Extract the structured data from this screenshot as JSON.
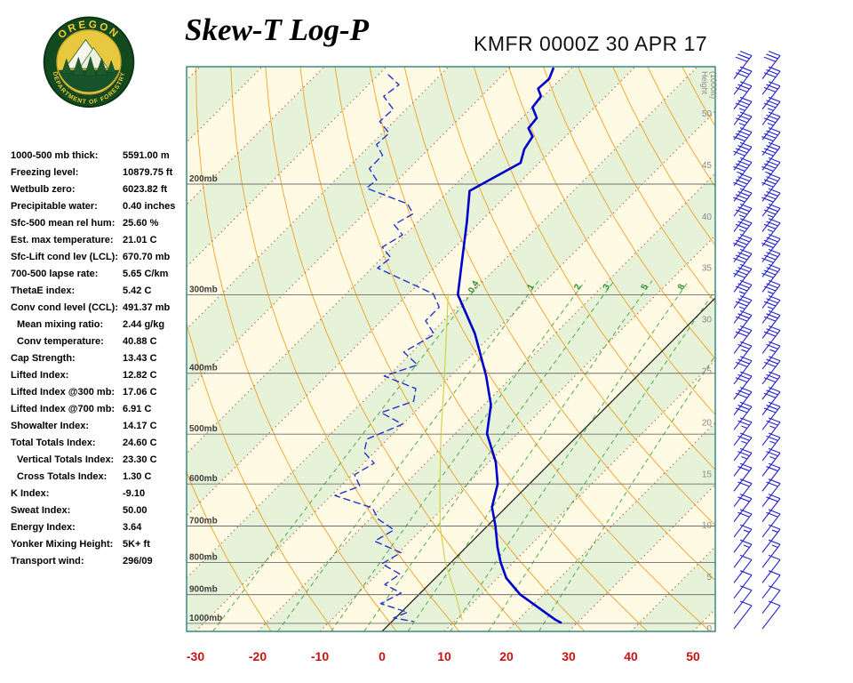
{
  "header": {
    "title": "Skew-T Log-P",
    "station_line": "KMFR 0000Z 30 APR 17",
    "logo": {
      "top": "OREGON",
      "bottom": "DEPARTMENT OF FORESTRY"
    }
  },
  "indices": {
    "rows": [
      {
        "label": "1000-500 mb thick:",
        "value": "5591.00 m",
        "indent": false
      },
      {
        "label": "Freezing level:",
        "value": "10879.75 ft",
        "indent": false
      },
      {
        "label": "Wetbulb zero:",
        "value": "6023.82 ft",
        "indent": false
      },
      {
        "label": "Precipitable water:",
        "value": "0.40 inches",
        "indent": false
      },
      {
        "label": "Sfc-500 mean rel hum:",
        "value": "25.60 %",
        "indent": false
      },
      {
        "label": "Est. max temperature:",
        "value": "21.01 C",
        "indent": false
      },
      {
        "label": "Sfc-Lift cond lev (LCL):",
        "value": "670.70 mb",
        "indent": false
      },
      {
        "label": "700-500 lapse rate:",
        "value": "5.65 C/km",
        "indent": false
      },
      {
        "label": "ThetaE index:",
        "value": "5.42 C",
        "indent": false
      },
      {
        "label": "Conv cond level (CCL):",
        "value": "491.37 mb",
        "indent": false
      },
      {
        "label": "Mean mixing ratio:",
        "value": "2.44 g/kg",
        "indent": true
      },
      {
        "label": "Conv temperature:",
        "value": "40.88 C",
        "indent": true
      },
      {
        "label": "Cap Strength:",
        "value": "13.43 C",
        "indent": false
      },
      {
        "label": "Lifted Index:",
        "value": "12.82 C",
        "indent": false
      },
      {
        "label": "Lifted Index @300 mb:",
        "value": "17.06 C",
        "indent": false
      },
      {
        "label": "Lifted Index @700 mb:",
        "value": "6.91 C",
        "indent": false
      },
      {
        "label": "Showalter Index:",
        "value": "14.17 C",
        "indent": false
      },
      {
        "label": "Total Totals Index:",
        "value": "24.60 C",
        "indent": false
      },
      {
        "label": "Vertical Totals Index:",
        "value": "23.30 C",
        "indent": true
      },
      {
        "label": "Cross Totals Index:",
        "value": "1.30 C",
        "indent": true
      },
      {
        "label": "K Index:",
        "value": "-9.10",
        "indent": false
      },
      {
        "label": "Sweat Index:",
        "value": "50.00",
        "indent": false
      },
      {
        "label": "Energy Index:",
        "value": "3.64",
        "indent": false
      },
      {
        "label": "Yonker Mixing Height:",
        "value": "5K+ ft",
        "indent": false
      },
      {
        "label": "Transport wind:",
        "value": "296/09",
        "indent": false
      }
    ]
  },
  "chart_data": {
    "type": "line",
    "subtype": "skew-t-log-p",
    "title": "Skew-T Log-P",
    "station": "KMFR",
    "valid_time": "0000Z 30 APR 17",
    "x_axis": {
      "ticks": [
        -30,
        -20,
        -10,
        0,
        10,
        20,
        30,
        40,
        50
      ],
      "unit": "C",
      "label_color": "#cc1111"
    },
    "pressure_ticks": [
      200,
      300,
      400,
      500,
      600,
      700,
      800,
      900,
      1000
    ],
    "pressure_suffix": "mb",
    "pressure_range": [
      130,
      1030
    ],
    "height_axis": {
      "title": "Height",
      "unit": "(1000ft)",
      "ticks": [
        50,
        45,
        40,
        35,
        30,
        25,
        20,
        15,
        10,
        5,
        0
      ]
    },
    "isotherms": {
      "min": -130,
      "max": 60,
      "step": 10,
      "freezing": 0
    },
    "dry_adiabats": {
      "min": -20,
      "max": 210,
      "step": 10
    },
    "mixing_ratio_lines": [
      0.4,
      1,
      2,
      3,
      5,
      8,
      12,
      20
    ],
    "mixing_ratio_labeled": [
      0.4,
      1,
      2,
      3,
      5,
      8
    ],
    "colors": {
      "background": "#fffae3",
      "band": "#e7f3d9",
      "isotherm": "#b45f3f",
      "adiabat": "#f09000",
      "mixing": "#3aa33a",
      "frame": "#2e8080",
      "temperature": "#0000cc",
      "dewpoint": "#2233cc",
      "wetbulb": "#cfcf40",
      "barb": "#2121cc"
    },
    "series": [
      {
        "name": "wetbulb",
        "color": "#cfcf40",
        "style": "solid",
        "width": 1.1,
        "points": [
          [
            299,
            -43.6
          ],
          [
            404,
            -31
          ],
          [
            499,
            -22.3
          ],
          [
            600,
            -14.4
          ],
          [
            700,
            -7.6
          ],
          [
            800,
            -0.9
          ],
          [
            900,
            5.9
          ],
          [
            987,
            11
          ]
        ]
      },
      {
        "name": "dewpoint",
        "color": "#2233cc",
        "style": "dashed",
        "width": 1.4,
        "points": [
          [
            134,
            -88.4
          ],
          [
            139,
            -85.1
          ],
          [
            145,
            -85.7
          ],
          [
            152,
            -82.1
          ],
          [
            159,
            -82.3
          ],
          [
            166,
            -78.9
          ],
          [
            173,
            -79.1
          ],
          [
            180,
            -76.4
          ],
          [
            189,
            -76.4
          ],
          [
            197,
            -73.4
          ],
          [
            203,
            -73.7
          ],
          [
            215,
            -64.6
          ],
          [
            223,
            -62.1
          ],
          [
            232,
            -63.4
          ],
          [
            241,
            -60.4
          ],
          [
            252,
            -61.7
          ],
          [
            262,
            -58.6
          ],
          [
            272,
            -59.1
          ],
          [
            299,
            -46
          ],
          [
            314,
            -42.9
          ],
          [
            330,
            -42.9
          ],
          [
            347,
            -39.3
          ],
          [
            370,
            -41.4
          ],
          [
            388,
            -37.1
          ],
          [
            404,
            -40.7
          ],
          [
            423,
            -33.6
          ],
          [
            443,
            -31.9
          ],
          [
            462,
            -35.3
          ],
          [
            482,
            -30
          ],
          [
            509,
            -33.3
          ],
          [
            534,
            -31.7
          ],
          [
            556,
            -28.3
          ],
          [
            580,
            -29.6
          ],
          [
            605,
            -26.9
          ],
          [
            626,
            -29.4
          ],
          [
            655,
            -21.4
          ],
          [
            683,
            -18.6
          ],
          [
            710,
            -14.4
          ],
          [
            740,
            -15.7
          ],
          [
            772,
            -9.6
          ],
          [
            804,
            -10.9
          ],
          [
            835,
            -6.3
          ],
          [
            867,
            -7.1
          ],
          [
            895,
            -3.1
          ],
          [
            930,
            -4.7
          ],
          [
            960,
            1
          ],
          [
            980,
            -0.3
          ],
          [
            993,
            3.4
          ]
        ]
      },
      {
        "name": "temperature",
        "color": "#0000cc",
        "style": "solid",
        "width": 2.6,
        "points": [
          [
            131,
            -62.9
          ],
          [
            136,
            -61.9
          ],
          [
            141,
            -62.1
          ],
          [
            145,
            -60.4
          ],
          [
            151,
            -60
          ],
          [
            157,
            -57.6
          ],
          [
            163,
            -57.3
          ],
          [
            168,
            -55.3
          ],
          [
            176,
            -54.6
          ],
          [
            185,
            -53
          ],
          [
            205,
            -56.7
          ],
          [
            230,
            -52.1
          ],
          [
            262,
            -47.1
          ],
          [
            300,
            -41.9
          ],
          [
            346,
            -32.9
          ],
          [
            404,
            -24.3
          ],
          [
            449,
            -18.9
          ],
          [
            499,
            -14.9
          ],
          [
            554,
            -8.9
          ],
          [
            600,
            -5.1
          ],
          [
            653,
            -2.3
          ],
          [
            700,
            1.3
          ],
          [
            756,
            5
          ],
          [
            800,
            8
          ],
          [
            847,
            11.4
          ],
          [
            900,
            16.3
          ],
          [
            987,
            26
          ],
          [
            997,
            27.3
          ]
        ]
      }
    ],
    "wind_barb_levels": [
      [
        1020,
        8
      ],
      [
        964,
        10
      ],
      [
        912,
        10
      ],
      [
        862,
        12
      ],
      [
        815,
        15
      ],
      [
        771,
        15
      ],
      [
        729,
        18
      ],
      [
        689,
        20
      ],
      [
        652,
        20
      ],
      [
        616,
        22
      ],
      [
        583,
        25
      ],
      [
        551,
        25
      ],
      [
        521,
        25
      ],
      [
        492,
        28
      ],
      [
        466,
        30
      ],
      [
        440,
        30
      ],
      [
        416,
        28
      ],
      [
        394,
        25
      ],
      [
        372,
        30
      ],
      [
        352,
        32
      ],
      [
        333,
        35
      ],
      [
        315,
        35
      ],
      [
        297,
        38
      ],
      [
        281,
        40
      ],
      [
        266,
        38
      ],
      [
        251,
        35
      ],
      [
        238,
        35
      ],
      [
        225,
        40
      ],
      [
        213,
        42
      ],
      [
        201,
        45
      ],
      [
        190,
        40
      ],
      [
        180,
        38
      ],
      [
        170,
        35
      ],
      [
        161,
        35
      ],
      [
        152,
        32
      ],
      [
        144,
        30
      ],
      [
        136,
        28
      ]
    ]
  }
}
